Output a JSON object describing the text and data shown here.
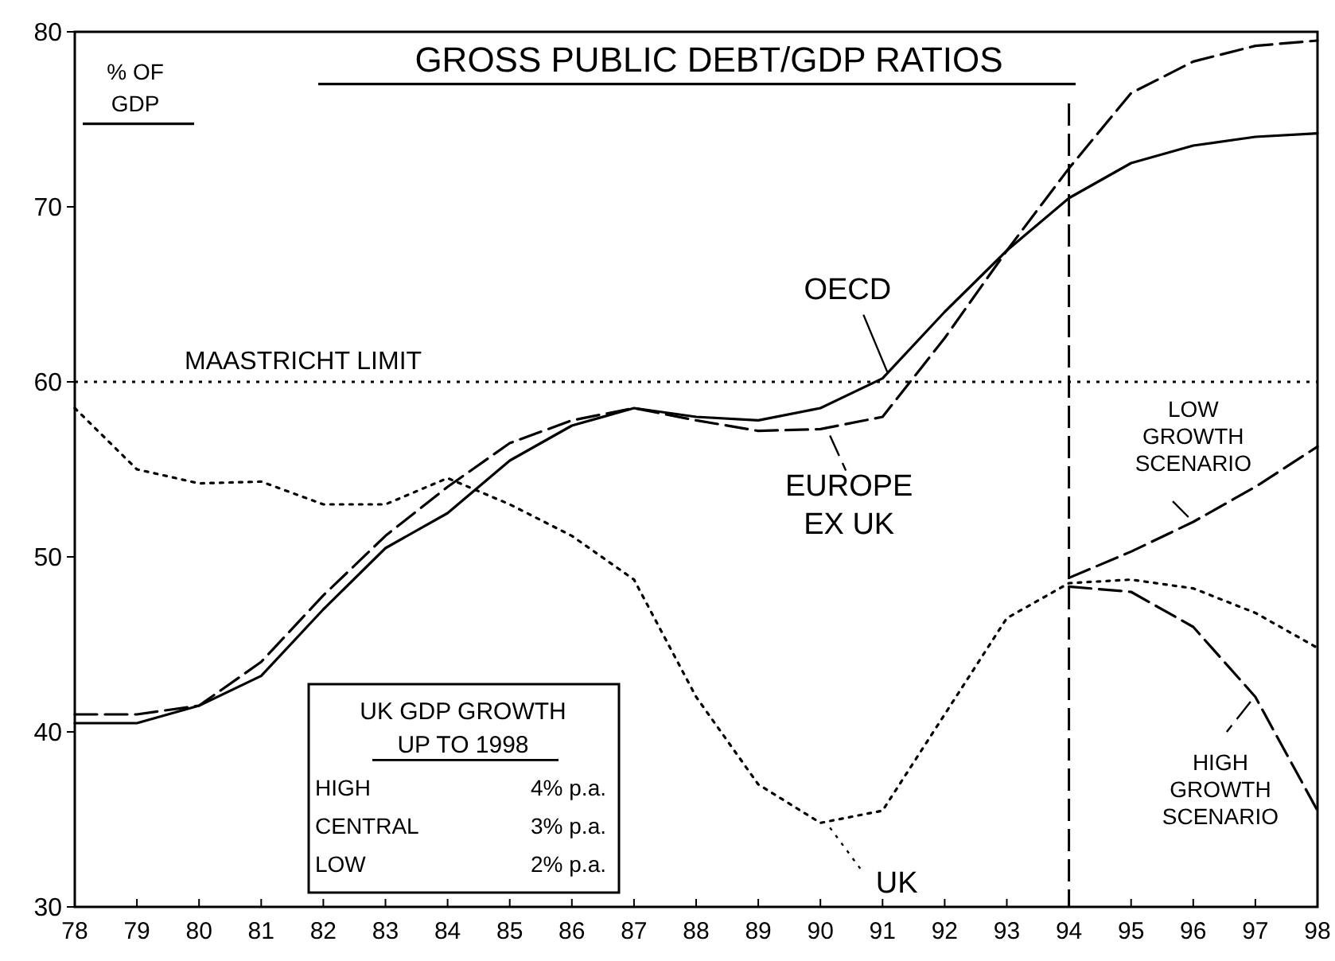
{
  "chart_data": {
    "type": "line",
    "title": "GROSS PUBLIC DEBT/GDP RATIOS",
    "ylabel": "% OF GDP",
    "x": [
      78,
      79,
      80,
      81,
      82,
      83,
      84,
      85,
      86,
      87,
      88,
      89,
      90,
      91,
      92,
      93,
      94,
      95,
      96,
      97,
      98
    ],
    "xlim": [
      78,
      98
    ],
    "xticks": [
      78,
      79,
      80,
      81,
      82,
      83,
      84,
      85,
      86,
      87,
      88,
      89,
      90,
      91,
      92,
      93,
      94,
      95,
      96,
      97,
      98
    ],
    "ylim": [
      30,
      80
    ],
    "yticks": [
      30,
      40,
      50,
      60,
      70,
      80
    ],
    "grid": false,
    "legend": "bottom right",
    "marker": "none",
    "series": [
      {
        "name": "OECD",
        "color": "#000000",
        "line_style": "solid",
        "values": [
          40.5,
          40.5,
          41.5,
          43.2,
          47,
          50.5,
          52.5,
          55.5,
          57.5,
          58.5,
          58,
          57.8,
          58.5,
          60.2,
          64,
          67.5,
          70.5,
          72.5,
          73.5,
          74,
          74.2
        ]
      },
      {
        "name": "EUROPE EX UK",
        "color": "#000000",
        "line_style": "dashed",
        "values": [
          41,
          41,
          41.5,
          44,
          47.8,
          51.2,
          54,
          56.5,
          57.8,
          58.5,
          57.8,
          57.2,
          57.3,
          58,
          62.5,
          67.5,
          72.2,
          76.5,
          78.3,
          79.2,
          79.5
        ]
      },
      {
        "name": "UK",
        "color": "#000000",
        "line_style": "dotted",
        "values": [
          58.5,
          55,
          54.2,
          54.3,
          53,
          53,
          54.5,
          53,
          51.2,
          48.7,
          42,
          37,
          34.8,
          35.5,
          41,
          46.5,
          48.5,
          48.7,
          48.2,
          46.8,
          44.8
        ]
      },
      {
        "name": "LOW GROWTH SCENARIO",
        "color": "#000000",
        "line_style": "dashed",
        "x": [
          94,
          95,
          96,
          97,
          98
        ],
        "values": [
          48.8,
          50.3,
          52,
          54,
          56.3
        ]
      },
      {
        "name": "HIGH GROWTH SCENARIO",
        "color": "#000000",
        "line_style": "dashed",
        "x": [
          94,
          95,
          96,
          97,
          98
        ],
        "values": [
          48.3,
          48,
          46,
          42,
          35.5
        ]
      }
    ],
    "ref_lines": [
      {
        "axis": "y",
        "value": 60,
        "label": "MAASTRICHT LIMIT",
        "line_style": "dotted",
        "color": "#000000"
      },
      {
        "axis": "x",
        "value": 94,
        "label": null,
        "line_style": "dashed",
        "color": "#000000"
      }
    ],
    "annotations": [
      "UK GDP GROWTH",
      "UP TO 1998",
      "HIGH",
      "4% p.a.",
      "CENTRAL",
      "3% p.a.",
      "LOW",
      "2% p.a."
    ]
  }
}
